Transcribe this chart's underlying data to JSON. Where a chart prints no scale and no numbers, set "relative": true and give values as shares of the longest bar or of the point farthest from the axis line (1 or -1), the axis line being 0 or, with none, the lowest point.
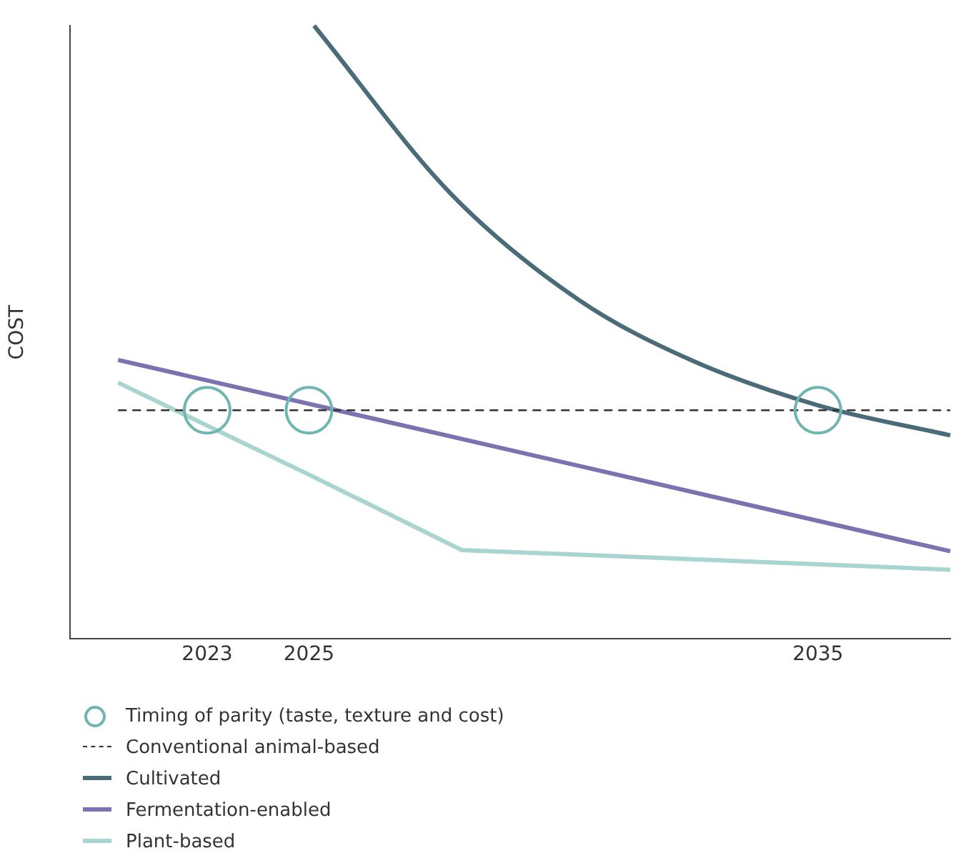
{
  "chart_data": {
    "type": "line",
    "ylabel": "COST",
    "relative": true,
    "xlim": [
      2020.3,
      2037.6
    ],
    "xticks": [
      2023,
      2025,
      2035
    ],
    "grid": false,
    "legend": "bottom left",
    "series": [
      {
        "name": "Timing of parity (taste, texture and cost)",
        "type": "scatter",
        "marker": "circle",
        "color": "#6fb5b0",
        "x": [
          2023,
          2025,
          2035
        ],
        "values": [
          0.373,
          0.373,
          0.373
        ]
      },
      {
        "name": "Conventional animal-based",
        "line_style": "dashed",
        "color": "#333333",
        "x": [
          2021.25,
          2037.6
        ],
        "values": [
          0.373,
          0.373
        ]
      },
      {
        "name": "Cultivated",
        "color": "#4a6b78",
        "x": [
          2025.1,
          2027.8,
          2030.3,
          2032.5,
          2035,
          2037.6
        ],
        "values": [
          1,
          0.725,
          0.553,
          0.455,
          0.381,
          0.332
        ]
      },
      {
        "name": "Fermentation-enabled",
        "color": "#7b72b0",
        "x": [
          2021.25,
          2037.6
        ],
        "values": [
          0.455,
          0.143
        ]
      },
      {
        "name": "Plant-based",
        "color": "#a8d5d0",
        "x": [
          2021.25,
          2025,
          2028,
          2037.6
        ],
        "values": [
          0.418,
          0.268,
          0.145,
          0.113
        ]
      }
    ]
  }
}
